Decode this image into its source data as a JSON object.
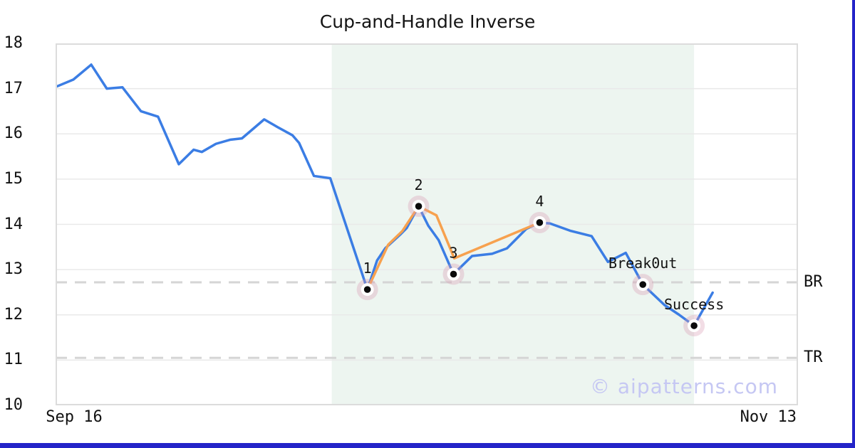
{
  "watermark": "© aipatterns.com",
  "chart_data": {
    "type": "line",
    "title": "Cup-and-Handle Inverse",
    "grid": true,
    "legend": "none",
    "y_axis": {
      "min": 10,
      "max": 18,
      "ticks": [
        18,
        17,
        16,
        15,
        14,
        13,
        12,
        11,
        10
      ]
    },
    "x_axis": {
      "ticks": [
        {
          "label": "Sep 16",
          "pos_pct": 2.5
        },
        {
          "label": "Nov 13",
          "pos_pct": 96.0
        }
      ]
    },
    "shaded_region": {
      "start_pct": 37.2,
      "end_pct": 86.0
    },
    "hlines": [
      {
        "label": "BR",
        "value": 12.72,
        "style": "dashed"
      },
      {
        "label": "TR",
        "value": 11.05,
        "style": "dashed"
      }
    ],
    "series": [
      {
        "name": "price",
        "points": [
          [
            0.2,
            17.05
          ],
          [
            2.4,
            17.2
          ],
          [
            4.8,
            17.53
          ],
          [
            6.9,
            17.0
          ],
          [
            9.0,
            17.03
          ],
          [
            11.5,
            16.5
          ],
          [
            13.8,
            16.38
          ],
          [
            16.6,
            15.33
          ],
          [
            18.6,
            15.65
          ],
          [
            19.7,
            15.6
          ],
          [
            21.6,
            15.78
          ],
          [
            23.5,
            15.87
          ],
          [
            25.1,
            15.9
          ],
          [
            28.1,
            16.32
          ],
          [
            29.9,
            16.15
          ],
          [
            31.9,
            15.97
          ],
          [
            32.8,
            15.8
          ],
          [
            34.8,
            15.07
          ],
          [
            37.0,
            15.02
          ],
          [
            42.0,
            12.56
          ],
          [
            43.3,
            13.2
          ],
          [
            44.4,
            13.47
          ],
          [
            46.4,
            13.77
          ],
          [
            47.3,
            13.92
          ],
          [
            48.9,
            14.4
          ],
          [
            50.2,
            13.97
          ],
          [
            51.6,
            13.65
          ],
          [
            53.6,
            12.9
          ],
          [
            56.1,
            13.3
          ],
          [
            58.8,
            13.35
          ],
          [
            60.8,
            13.47
          ],
          [
            63.4,
            13.9
          ],
          [
            65.2,
            14.04
          ],
          [
            66.6,
            14.02
          ],
          [
            69.3,
            13.86
          ],
          [
            72.2,
            13.74
          ],
          [
            74.4,
            13.17
          ],
          [
            76.8,
            13.37
          ],
          [
            79.1,
            12.67
          ],
          [
            82.0,
            12.22
          ],
          [
            84.0,
            12.0
          ],
          [
            86.0,
            11.76
          ],
          [
            88.5,
            12.49
          ]
        ]
      },
      {
        "name": "pattern",
        "points": [
          [
            42.0,
            12.56
          ],
          [
            44.8,
            13.55
          ],
          [
            46.7,
            13.85
          ],
          [
            48.9,
            14.4
          ],
          [
            51.3,
            14.2
          ],
          [
            53.7,
            13.25
          ],
          [
            65.2,
            14.04
          ]
        ]
      }
    ],
    "markers": [
      {
        "label": "1",
        "x_pct": 42.0,
        "value": 12.56
      },
      {
        "label": "2",
        "x_pct": 48.9,
        "value": 14.4
      },
      {
        "label": "3",
        "x_pct": 53.6,
        "value": 12.9
      },
      {
        "label": "4",
        "x_pct": 65.2,
        "value": 14.04
      },
      {
        "label": "Break0ut",
        "x_pct": 79.1,
        "value": 12.67
      },
      {
        "label": "Success",
        "x_pct": 86.0,
        "value": 11.76
      }
    ]
  },
  "colors": {
    "price_line": "#3b7de4",
    "pattern_line": "#f7a14e",
    "marker_halo": "rgba(216,155,178,0.34)",
    "marker_dot": "#0a0a0a",
    "region_fill": "#edf5f0",
    "grid_line": "#e9e9e9",
    "dashed_line": "#d5d5d5",
    "spine": "#dcdcdc",
    "accent_bar": "#2424c8",
    "watermark_text": "#c5c7f3"
  }
}
